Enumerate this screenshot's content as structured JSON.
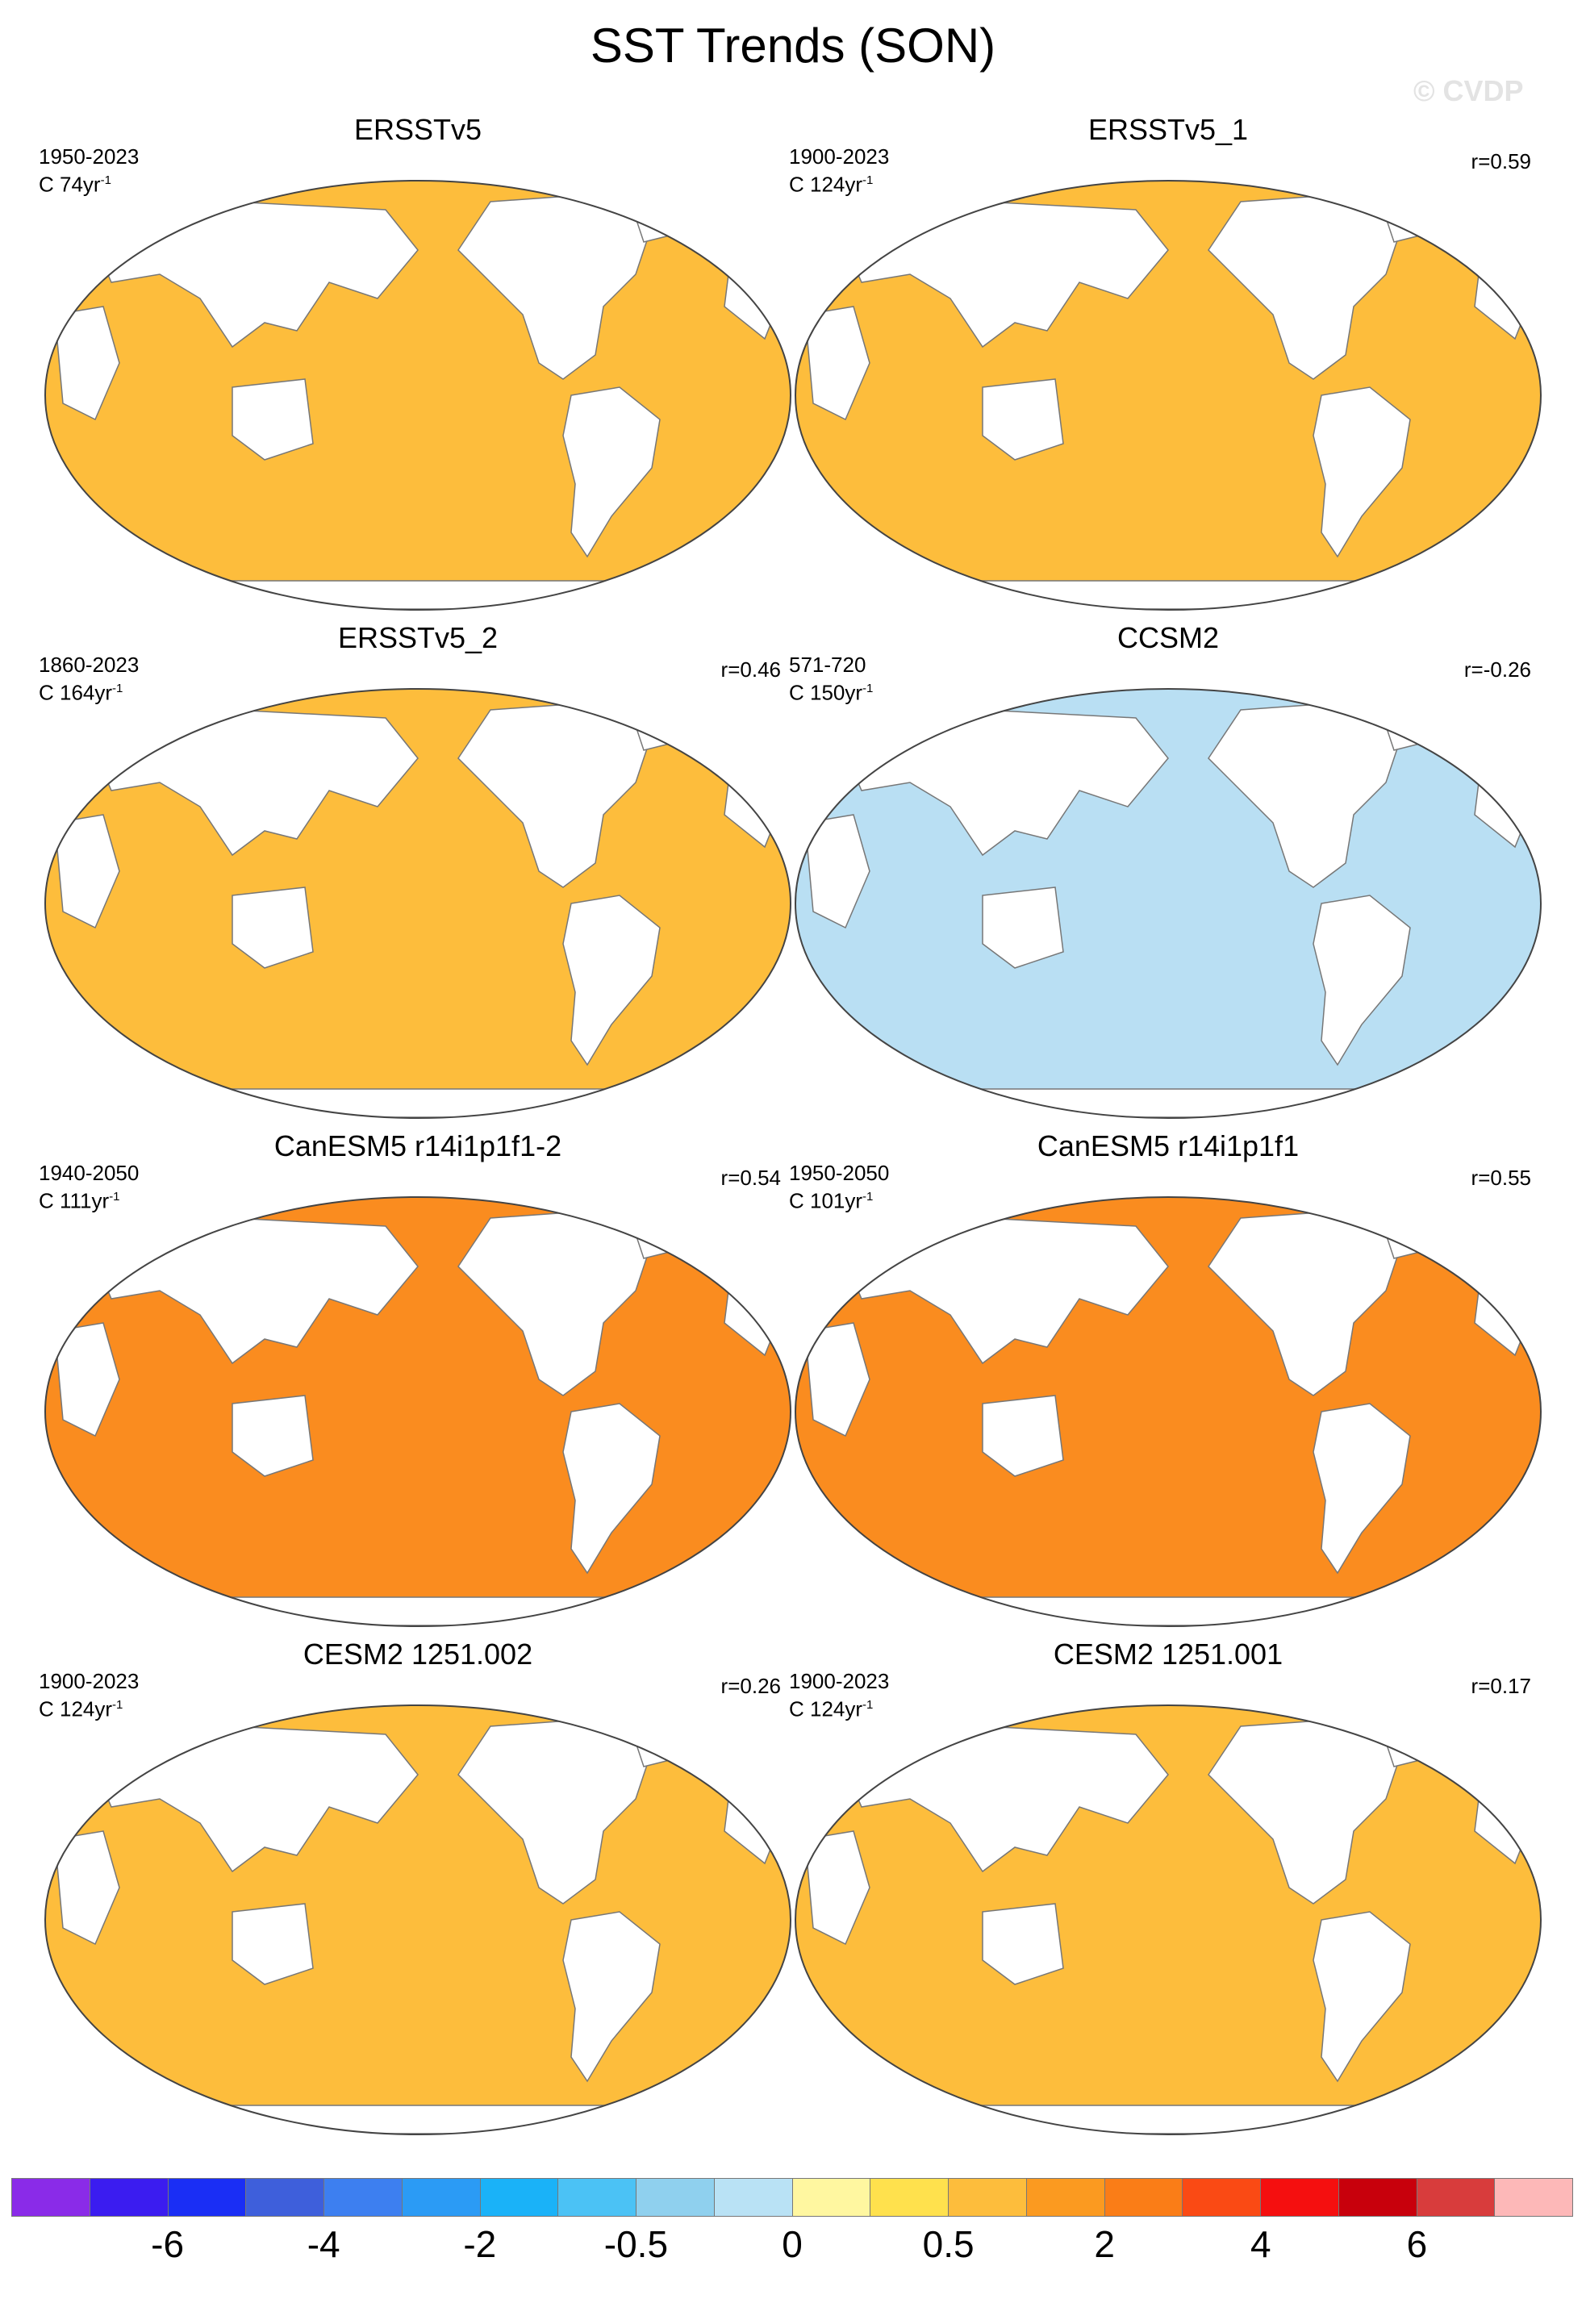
{
  "figure": {
    "title": "SST Trends (SON)",
    "watermark": "© CVDP"
  },
  "panels": [
    {
      "title": "ERSSTv5",
      "years": "1950-2023",
      "units": "C 74yr",
      "units_sup": "-1",
      "r": "",
      "map_color": "#fdbd3c"
    },
    {
      "title": "ERSSTv5_1",
      "years": "1900-2023",
      "units": "C 124yr",
      "units_sup": "-1",
      "r": "r=0.59",
      "map_color": "#fdbd3c"
    },
    {
      "title": "ERSSTv5_2",
      "years": "1860-2023",
      "units": "C 164yr",
      "units_sup": "-1",
      "r": "r=0.46",
      "map_color": "#fdbd3c"
    },
    {
      "title": "CCSM2",
      "years": "571-720",
      "units": "C 150yr",
      "units_sup": "-1",
      "r": "r=-0.26",
      "map_color": "#b9dff3"
    },
    {
      "title": "CanESM5 r14i1p1f1-2",
      "years": "1940-2050",
      "units": "C 111yr",
      "units_sup": "-1",
      "r": "r=0.54",
      "map_color": "#fa8c1f"
    },
    {
      "title": "CanESM5 r14i1p1f1",
      "years": "1950-2050",
      "units": "C 101yr",
      "units_sup": "-1",
      "r": "r=0.55",
      "map_color": "#fa8c1f"
    },
    {
      "title": "CESM2 1251.002",
      "years": "1900-2023",
      "units": "C 124yr",
      "units_sup": "-1",
      "r": "r=0.26",
      "map_color": "#fdbd3c"
    },
    {
      "title": "CESM2 1251.001",
      "years": "1900-2023",
      "units": "C 124yr",
      "units_sup": "-1",
      "r": "r=0.17",
      "map_color": "#fdbd3c"
    }
  ],
  "colorbar": {
    "colors": [
      "#8a2be8",
      "#3b1cf0",
      "#1a2ef5",
      "#3e5fdb",
      "#3d7ff0",
      "#2b9bf5",
      "#1ab2f8",
      "#4bc2f5",
      "#8fd0ee",
      "#b9e2f5",
      "#fff7a0",
      "#ffe14d",
      "#fdbd3c",
      "#fb9a20",
      "#fa7d17",
      "#fa4a14",
      "#f50f0f",
      "#c8000c",
      "#d83c3c",
      "#fdb8b8"
    ],
    "tick_labels": [
      "-6",
      "-4",
      "-2",
      "-0.5",
      "0",
      "0.5",
      "2",
      "4",
      "6"
    ]
  }
}
